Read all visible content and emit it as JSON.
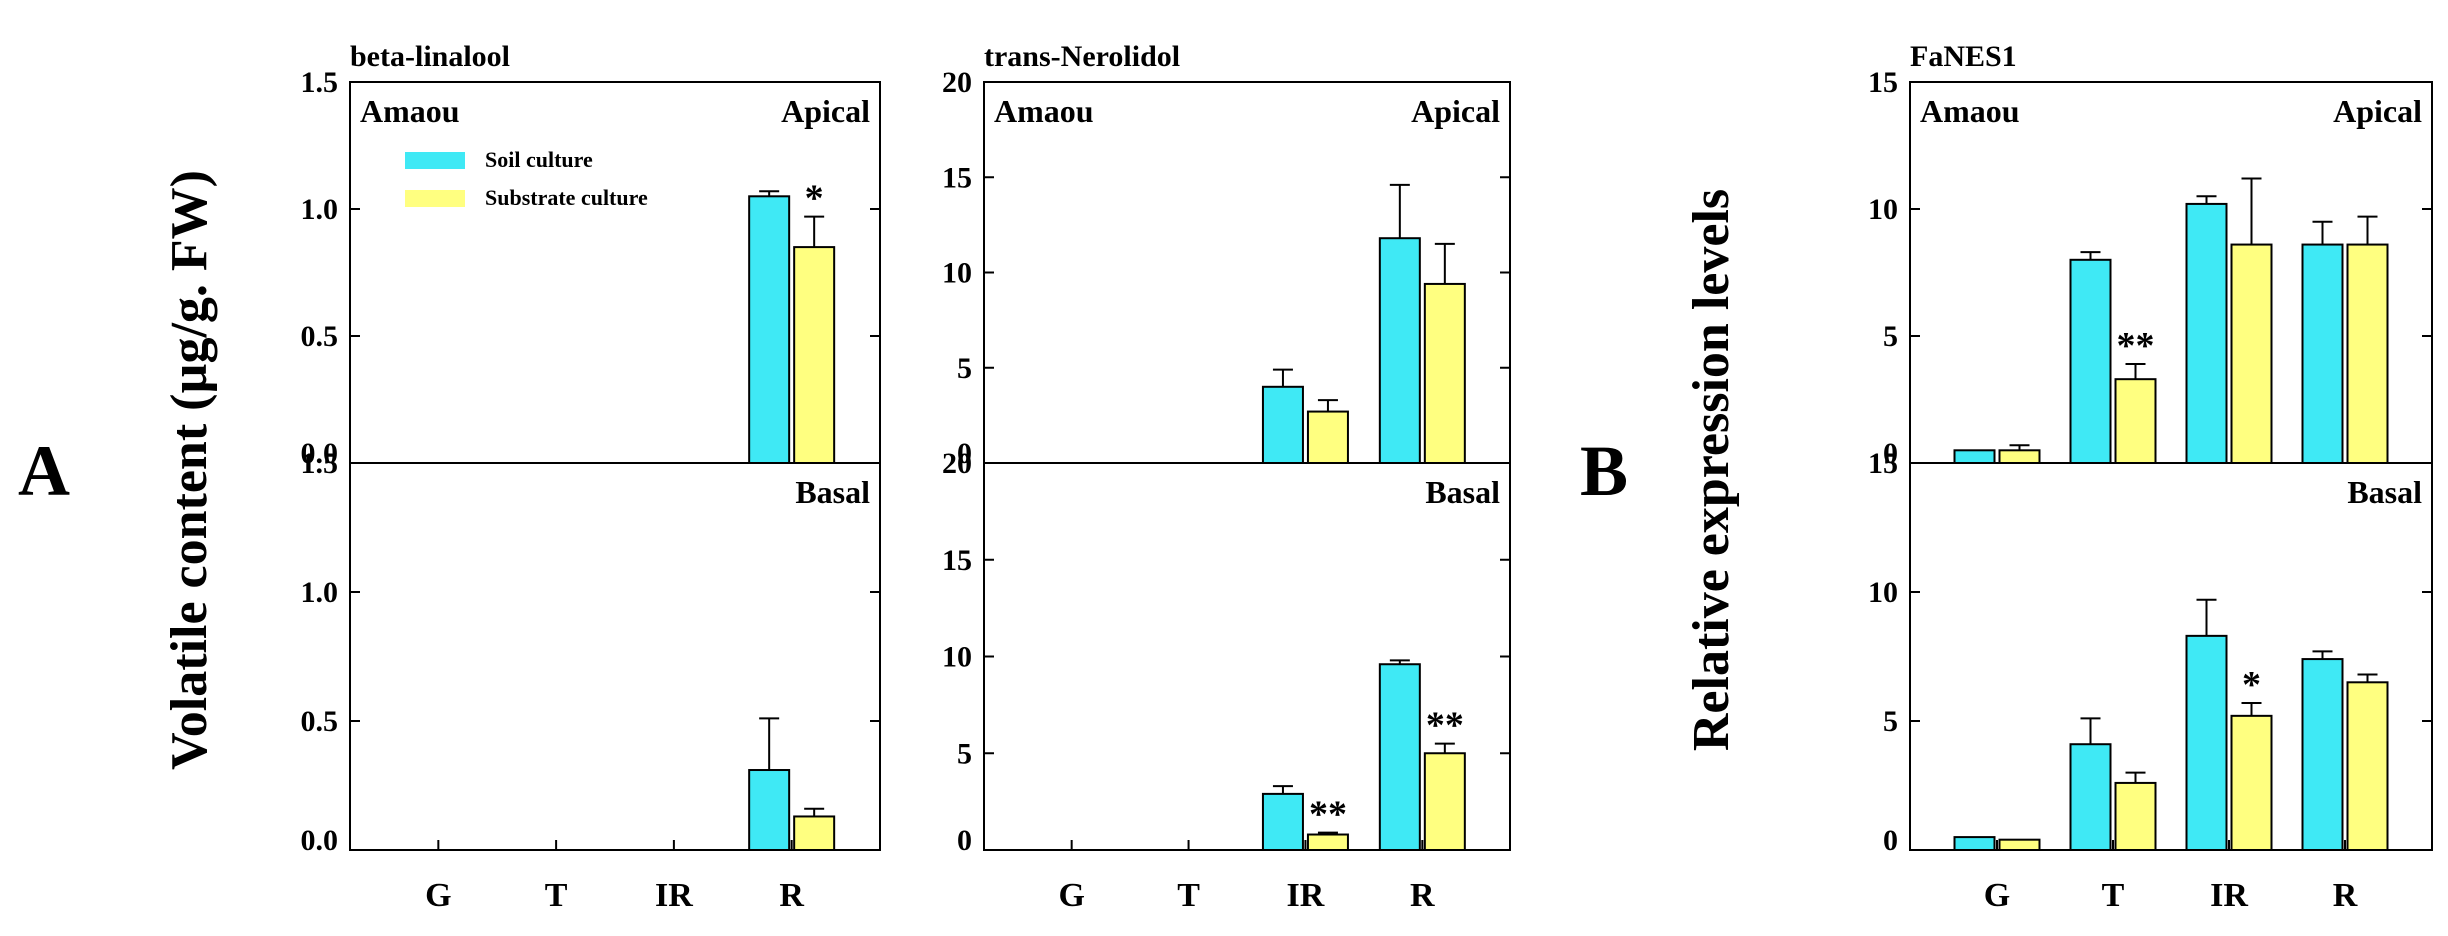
{
  "colors": {
    "soil": "#3fe9f5",
    "substrate": "#ffff80",
    "ink": "#000000"
  },
  "panel_letters": {
    "a": "A",
    "b": "B"
  },
  "y_labels": {
    "a": "Volatile content (µg/g. FW)",
    "b": "Relative expression levels"
  },
  "legend": {
    "soil": "Soil culture",
    "substrate": "Substrate culture"
  },
  "chart_data": [
    {
      "type": "bar",
      "title": "beta-linalool",
      "categories": [
        "G",
        "T",
        "IR",
        "R"
      ],
      "ylabel": "Volatile content (µg/g. FW)",
      "ylim": [
        0,
        1.5
      ],
      "tick_values": [
        0,
        0.5,
        1.0,
        1.5
      ],
      "tick_labels": [
        "0.0",
        "0.5",
        "1.0",
        "1.5"
      ],
      "panels": [
        {
          "position": "Apical",
          "cultivar": "Amaou",
          "series": [
            {
              "name": "Soil culture",
              "values": [
                0,
                0,
                0,
                1.05
              ],
              "errors": [
                0,
                0,
                0,
                0.02
              ]
            },
            {
              "name": "Substrate culture",
              "values": [
                0,
                0,
                0,
                0.85
              ],
              "errors": [
                0,
                0,
                0,
                0.12
              ]
            }
          ],
          "annotations": [
            {
              "category": "R",
              "text": "*"
            }
          ]
        },
        {
          "position": "Basal",
          "cultivar": "",
          "series": [
            {
              "name": "Soil culture",
              "values": [
                0,
                0,
                0,
                0.31
              ],
              "errors": [
                0,
                0,
                0,
                0.2
              ]
            },
            {
              "name": "Substrate culture",
              "values": [
                0,
                0,
                0,
                0.13
              ],
              "errors": [
                0,
                0,
                0,
                0.03
              ]
            }
          ],
          "annotations": []
        }
      ]
    },
    {
      "type": "bar",
      "title": "trans-Nerolidol",
      "categories": [
        "G",
        "T",
        "IR",
        "R"
      ],
      "ylabel": "Volatile content (µg/g. FW)",
      "ylim": [
        0,
        20
      ],
      "tick_values": [
        0,
        5,
        10,
        15,
        20
      ],
      "tick_labels": [
        "0",
        "5",
        "10",
        "15",
        "20"
      ],
      "panels": [
        {
          "position": "Apical",
          "cultivar": "Amaou",
          "series": [
            {
              "name": "Soil culture",
              "values": [
                0,
                0,
                4.0,
                11.8
              ],
              "errors": [
                0,
                0,
                0.9,
                2.8
              ]
            },
            {
              "name": "Substrate culture",
              "values": [
                0,
                0,
                2.7,
                9.4
              ],
              "errors": [
                0,
                0,
                0.6,
                2.1
              ]
            }
          ],
          "annotations": []
        },
        {
          "position": "Basal",
          "cultivar": "",
          "series": [
            {
              "name": "Soil culture",
              "values": [
                0,
                0,
                2.9,
                9.6
              ],
              "errors": [
                0,
                0,
                0.4,
                0.2
              ]
            },
            {
              "name": "Substrate culture",
              "values": [
                0,
                0,
                0.8,
                5.0
              ],
              "errors": [
                0,
                0,
                0.1,
                0.5
              ]
            }
          ],
          "annotations": [
            {
              "category": "IR",
              "text": "**"
            },
            {
              "category": "R",
              "text": "**"
            }
          ]
        }
      ]
    },
    {
      "type": "bar",
      "title": "FaNES1",
      "categories": [
        "G",
        "T",
        "IR",
        "R"
      ],
      "ylabel": "Relative expression levels",
      "ylim": [
        0,
        15
      ],
      "tick_values": [
        0,
        5,
        10,
        15
      ],
      "tick_labels": [
        "0",
        "5",
        "10",
        "15"
      ],
      "panels": [
        {
          "position": "Apical",
          "cultivar": "Amaou",
          "series": [
            {
              "name": "Soil culture",
              "values": [
                0.5,
                8.0,
                10.2,
                8.6
              ],
              "errors": [
                0,
                0.3,
                0.3,
                0.9
              ]
            },
            {
              "name": "Substrate culture",
              "values": [
                0.5,
                3.3,
                8.6,
                8.6
              ],
              "errors": [
                0.2,
                0.6,
                2.6,
                1.1
              ]
            }
          ],
          "annotations": [
            {
              "category": "T",
              "text": "**"
            }
          ]
        },
        {
          "position": "Basal",
          "cultivar": "",
          "series": [
            {
              "name": "Soil culture",
              "values": [
                0.5,
                4.1,
                8.3,
                7.4
              ],
              "errors": [
                0,
                1.0,
                1.4,
                0.3
              ]
            },
            {
              "name": "Substrate culture",
              "values": [
                0.4,
                2.6,
                5.2,
                6.5
              ],
              "errors": [
                0,
                0.4,
                0.5,
                0.3
              ]
            }
          ],
          "annotations": [
            {
              "category": "IR",
              "text": "*"
            }
          ]
        }
      ]
    }
  ]
}
